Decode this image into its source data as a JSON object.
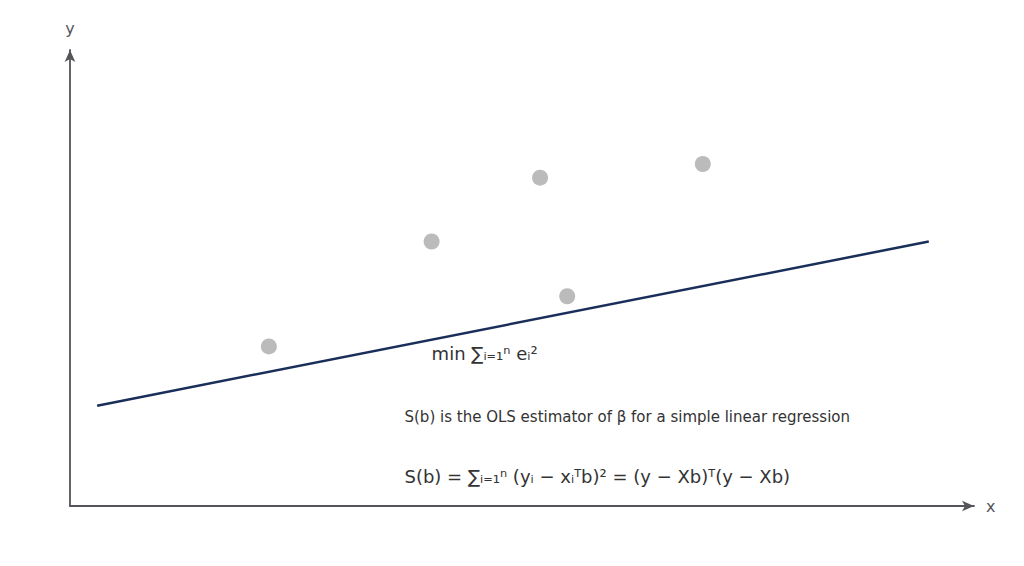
{
  "chart_data": {
    "type": "scatter",
    "xlabel": "x",
    "ylabel": "y",
    "xlim": [
      0,
      10
    ],
    "ylim": [
      0,
      10
    ],
    "grid": false,
    "tick_labels": false,
    "series": [
      {
        "type": "line",
        "color": "#1a2e5a",
        "x": [
          0.3,
          9.5
        ],
        "values": [
          2.2,
          5.8
        ]
      },
      {
        "type": "scatter",
        "color": "#aaaaaa",
        "x": [
          2.2,
          4.0,
          5.2,
          5.5,
          7.0
        ],
        "values": [
          3.5,
          5.8,
          7.2,
          4.6,
          7.5
        ]
      }
    ],
    "annotations": [
      "min ∑ᵢ₌₁ⁿ eᵢ²",
      "S(b) is the OLS estimator of β for a simple linear regression",
      "S(b) = ∑ᵢ₌₁ⁿ (yᵢ − xᵢᵀb)² = (y − Xb)ᵀ(y − Xb)"
    ]
  }
}
